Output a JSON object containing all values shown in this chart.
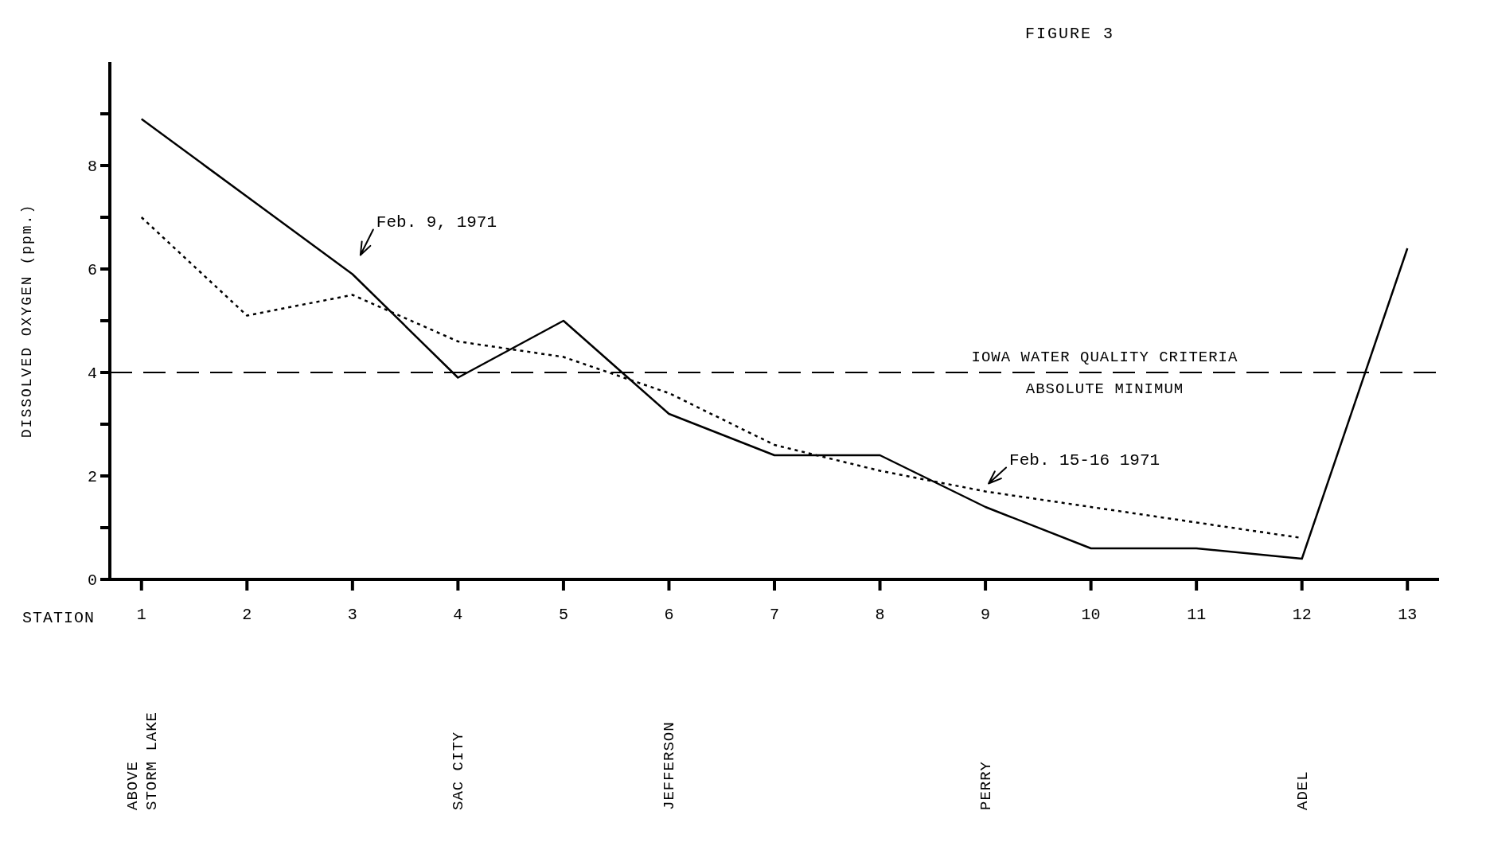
{
  "chart_data": {
    "type": "line",
    "title": "FIGURE 3",
    "xlabel": "STATION",
    "ylabel": "DISSOLVED OXYGEN  (ppm.)",
    "categories": [
      "1",
      "2",
      "3",
      "4",
      "5",
      "6",
      "7",
      "8",
      "9",
      "10",
      "11",
      "12",
      "13"
    ],
    "series": [
      {
        "name": "Feb. 9, 1971",
        "color": "#000000",
        "line_style": "solid",
        "values": [
          8.9,
          null,
          5.9,
          3.9,
          5.0,
          3.2,
          2.4,
          2.4,
          1.4,
          0.6,
          0.6,
          0.4,
          6.4
        ]
      },
      {
        "name": "Feb. 15-16  1971",
        "color": "#000000",
        "line_style": "dotted",
        "values": [
          7.0,
          5.1,
          5.5,
          4.6,
          4.3,
          3.6,
          2.6,
          2.1,
          1.7,
          null,
          null,
          0.8,
          null
        ]
      }
    ],
    "ylim": [
      0,
      10
    ],
    "yticks": [
      0,
      {
        "value": 1,
        "label": null
      },
      2,
      {
        "value": 3,
        "label": null
      },
      4,
      {
        "value": 5,
        "label": null
      },
      6,
      {
        "value": 7,
        "label": null
      },
      8,
      {
        "value": 9,
        "label": null
      }
    ],
    "ref_lines": [
      {
        "axis": "y",
        "value": 4,
        "label": "IOWA WATER QUALITY CRITERIA\nABSOLUTE MINIMUM",
        "line_style": "dashed",
        "color": "#000000"
      }
    ],
    "annotations": [
      "ABOVE\nSTORM LAKE",
      "SAC CITY",
      "JEFFERSON",
      "PERRY",
      "ADEL"
    ],
    "legend": false,
    "grid": false,
    "marker": "none"
  }
}
